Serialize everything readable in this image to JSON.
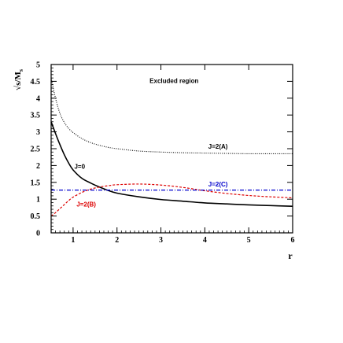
{
  "chart_data": {
    "type": "line",
    "title": "",
    "xlabel": "r",
    "ylabel_main": "√s/M",
    "ylabel_sub": "s",
    "xlim": [
      0.5,
      6
    ],
    "ylim": [
      0,
      5
    ],
    "x_ticks": [
      "1",
      "2",
      "3",
      "4",
      "5",
      "6"
    ],
    "y_ticks": [
      "0",
      "0.5",
      "1",
      "1.5",
      "2",
      "2.5",
      "3",
      "3.5",
      "4",
      "4.5",
      "5"
    ],
    "grid": false,
    "annotations": [
      {
        "text": "Excluded region",
        "x": 3.3,
        "y": 4.45,
        "color": "#000000"
      },
      {
        "text": "J=2(A)",
        "x": 4.3,
        "y": 2.5,
        "color": "#000000"
      },
      {
        "text": "J=0",
        "x": 1.15,
        "y": 1.9,
        "color": "#000000"
      },
      {
        "text": "J=2(C)",
        "x": 4.3,
        "y": 1.38,
        "color": "#0000cc"
      },
      {
        "text": "J=2(B)",
        "x": 1.3,
        "y": 0.78,
        "color": "#dd0000"
      }
    ],
    "series": [
      {
        "name": "J=0",
        "color": "#000000",
        "style": "solid",
        "x": [
          0.5,
          0.6,
          0.7,
          0.8,
          0.9,
          1.0,
          1.2,
          1.4,
          1.6,
          1.8,
          2.0,
          2.5,
          3.0,
          3.5,
          4.0,
          4.5,
          5.0,
          5.5,
          6.0
        ],
        "y": [
          3.3,
          2.95,
          2.62,
          2.32,
          2.07,
          1.87,
          1.62,
          1.48,
          1.36,
          1.26,
          1.18,
          1.07,
          0.99,
          0.94,
          0.89,
          0.86,
          0.83,
          0.81,
          0.79
        ]
      },
      {
        "name": "J=2(A)",
        "color": "#000000",
        "style": "dotted",
        "x": [
          0.5,
          0.6,
          0.7,
          0.8,
          0.9,
          1.0,
          1.2,
          1.4,
          1.6,
          1.8,
          2.0,
          2.5,
          3.0,
          3.5,
          4.0,
          4.5,
          5.0,
          5.5,
          6.0
        ],
        "y": [
          4.6,
          4.0,
          3.55,
          3.28,
          3.1,
          2.98,
          2.8,
          2.68,
          2.6,
          2.54,
          2.5,
          2.43,
          2.4,
          2.38,
          2.37,
          2.36,
          2.35,
          2.35,
          2.35
        ]
      },
      {
        "name": "J=2(B)",
        "color": "#dd0000",
        "style": "dashed",
        "x": [
          0.5,
          0.6,
          0.7,
          0.8,
          0.9,
          1.0,
          1.2,
          1.4,
          1.6,
          1.8,
          2.0,
          2.5,
          3.0,
          3.5,
          4.0,
          4.5,
          5.0,
          5.5,
          6.0
        ],
        "y": [
          0.5,
          0.6,
          0.72,
          0.84,
          0.96,
          1.06,
          1.2,
          1.3,
          1.36,
          1.4,
          1.43,
          1.45,
          1.42,
          1.35,
          1.25,
          1.17,
          1.11,
          1.07,
          1.04
        ]
      },
      {
        "name": "J=2(C)",
        "color": "#0000cc",
        "style": "dashdot",
        "x": [
          0.5,
          6.0
        ],
        "y": [
          1.27,
          1.27
        ]
      }
    ]
  }
}
